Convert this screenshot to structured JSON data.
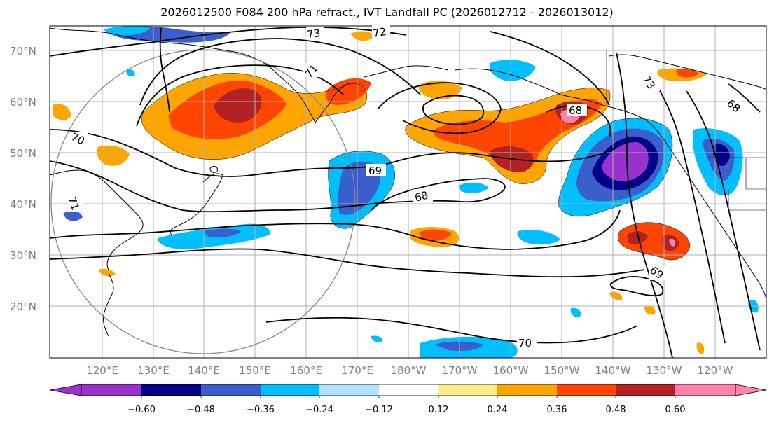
{
  "title": "2026012500 F084 200 hPa refract., IVT Landfall PC (2026012712 - 2026013012)",
  "lat_labels": [
    "70°N",
    "60°N",
    "50°N",
    "40°N",
    "30°N",
    "20°N"
  ],
  "lon_labels": [
    "120°E",
    "130°E",
    "140°E",
    "150°E",
    "160°E",
    "170°E",
    "180°W",
    "170°W",
    "160°W",
    "150°W",
    "140°W",
    "130°W",
    "120°W"
  ],
  "colorbar": {
    "ticks": [
      "−0.60",
      "−0.48",
      "−0.36",
      "−0.24",
      "−0.12",
      "0.12",
      "0.24",
      "0.36",
      "0.48",
      "0.60"
    ],
    "colors": [
      "#9932CC",
      "#00008B",
      "#3A5FCD",
      "#00BFFF",
      "#B2E2FF",
      "#FFFFFF",
      "#FFEC8B",
      "#FFA500",
      "#FF4500",
      "#B22222",
      "#FF82AB",
      "#FF82AB"
    ]
  },
  "contour_labels": [
    "73",
    "72",
    "71",
    "70",
    "69",
    "68",
    "68",
    "69",
    "70",
    "71",
    "73",
    "68"
  ]
}
